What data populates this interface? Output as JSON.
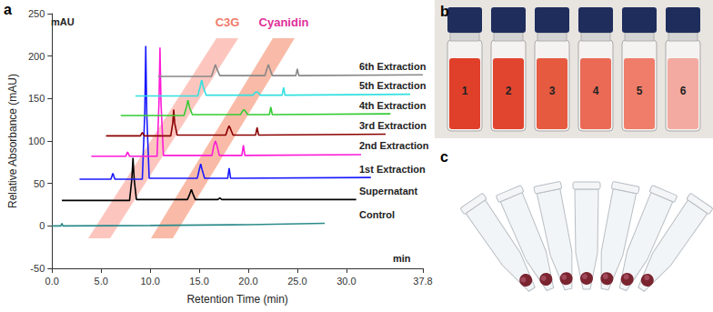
{
  "chart_data": {
    "type": "line",
    "x_label": "Retention Time (min)",
    "y_label": "Relative Absorbance (mAU)",
    "annotations": [
      {
        "text": "mAU"
      },
      {
        "text": "min"
      },
      {
        "text": "C3G",
        "color": "#f07a6a"
      },
      {
        "text": "Cyanidin",
        "color": "#e0309a"
      }
    ],
    "xlim": [
      0,
      37.8
    ],
    "xticks": [
      {
        "value": 0,
        "label": "0.0"
      },
      {
        "value": 5,
        "label": "5.0"
      },
      {
        "value": 10,
        "label": "10.0"
      },
      {
        "value": 15,
        "label": "15.0"
      },
      {
        "value": 20,
        "label": "20.0"
      },
      {
        "value": 25,
        "label": "25.0"
      },
      {
        "value": 30,
        "label": "30.0"
      },
      37.8
    ],
    "ylim": [
      -50,
      250
    ],
    "yticks": [
      -50,
      0,
      50,
      100,
      150,
      200,
      250
    ],
    "grid": false,
    "series": [
      {
        "name": "Control",
        "color": "#2b8a8a",
        "x": [
          0,
          0.9,
          1.0,
          1.1,
          10,
          20,
          27.8
        ],
        "values": [
          0,
          0,
          3,
          0,
          0.5,
          1.5,
          3
        ]
      },
      {
        "name": "Supernatant",
        "color": "#000000",
        "x": [
          1.0,
          7.9,
          8.13,
          8.25,
          8.37,
          8.6,
          13.8,
          14.05,
          14.2,
          14.35,
          14.6,
          16.9,
          17.1,
          17.3,
          31
        ],
        "values": [
          30,
          30,
          55,
          80,
          55,
          31,
          31,
          38,
          43,
          38,
          31,
          31,
          33,
          31,
          31
        ]
      },
      {
        "name": "1st Extraction",
        "color": "#1a1aff",
        "x": [
          2.8,
          6.0,
          6.2,
          6.4,
          9.2,
          9.45,
          9.55,
          9.65,
          9.9,
          14.8,
          15.0,
          15.15,
          15.3,
          15.55,
          17.9,
          18.05,
          18.2,
          32.5
        ],
        "values": [
          55,
          55,
          62,
          55,
          55,
          133,
          212,
          133,
          56,
          56,
          66,
          73,
          66,
          56,
          56,
          68,
          56,
          57
        ]
      },
      {
        "name": "2nd Extraction",
        "color": "#ff1ad9",
        "x": [
          4.0,
          7.5,
          7.7,
          7.9,
          10.7,
          10.9,
          11.0,
          11.1,
          11.35,
          16.3,
          16.5,
          16.65,
          16.8,
          17.05,
          19.35,
          19.5,
          19.65,
          31.5
        ],
        "values": [
          82,
          82,
          87,
          82,
          82,
          146,
          210,
          146,
          83,
          83,
          95,
          100,
          95,
          83,
          83,
          95,
          83,
          84
        ]
      },
      {
        "name": "3rd Extraction",
        "color": "#8b0000",
        "x": [
          5.5,
          9.0,
          9.2,
          9.4,
          12.1,
          12.3,
          12.4,
          12.5,
          12.75,
          17.7,
          17.9,
          18.05,
          18.2,
          18.45,
          20.75,
          20.9,
          21.05,
          34
        ],
        "values": [
          106,
          106,
          110,
          106,
          106,
          121,
          137,
          121,
          107,
          107,
          114,
          118,
          114,
          107,
          107,
          116,
          107,
          108
        ]
      },
      {
        "name": "4th Extraction",
        "color": "#33cc33",
        "x": [
          7.0,
          13.45,
          13.7,
          13.85,
          14.0,
          14.3,
          19.2,
          19.4,
          19.55,
          19.7,
          19.95,
          22.15,
          22.3,
          22.45,
          34.5
        ],
        "values": [
          130,
          130,
          140,
          148,
          140,
          131,
          131,
          135,
          137,
          135,
          131,
          131,
          140,
          131,
          132
        ]
      },
      {
        "name": "5th Extraction",
        "color": "#33e0e0",
        "x": [
          8.5,
          14.85,
          15.1,
          15.25,
          15.4,
          15.7,
          20.5,
          20.7,
          20.85,
          21.0,
          21.2,
          23.45,
          23.6,
          23.75,
          36.5
        ],
        "values": [
          153,
          153,
          164,
          172,
          164,
          154,
          154,
          157,
          158,
          157,
          154,
          154,
          163,
          154,
          155
        ]
      },
      {
        "name": "6th Extraction",
        "color": "#888888",
        "x": [
          10.8,
          16.25,
          16.5,
          16.65,
          16.8,
          17.1,
          21.7,
          21.9,
          22.05,
          22.2,
          22.45,
          24.85,
          25.0,
          25.15,
          37.8
        ],
        "values": [
          176,
          176,
          185,
          190,
          185,
          177,
          177,
          185,
          190,
          185,
          177,
          177,
          185,
          177,
          178
        ]
      }
    ]
  },
  "panel_labels": [
    "a",
    "b",
    "c"
  ],
  "vial_labels": [
    "1",
    "2",
    "3",
    "4",
    "5",
    "6"
  ]
}
